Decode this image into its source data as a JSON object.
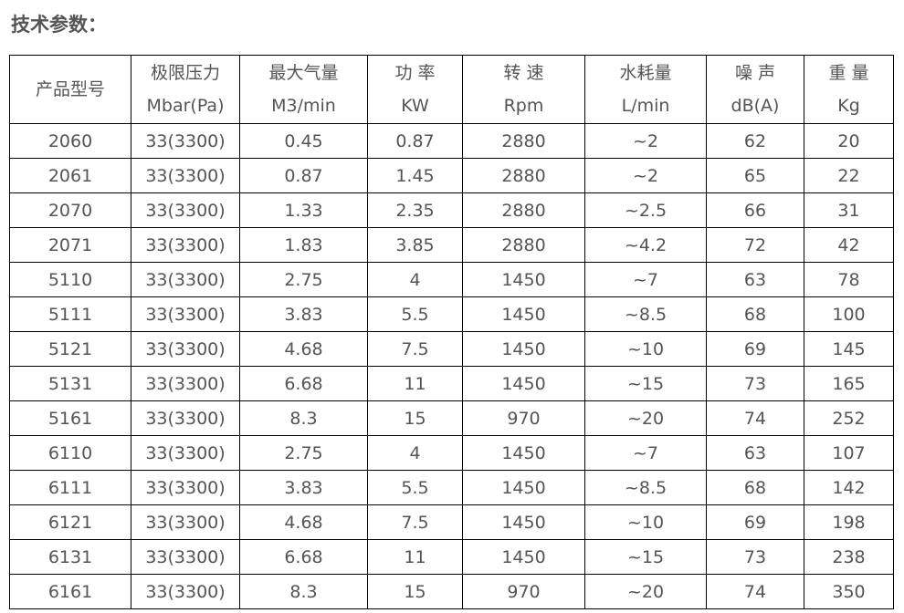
{
  "title": "技术参数：",
  "table": {
    "headers": [
      {
        "line1": "产品型号",
        "line2": ""
      },
      {
        "line1": "极限压力",
        "line2": "Mbar(Pa)"
      },
      {
        "line1": "最大气量",
        "line2": "M3/min"
      },
      {
        "line1": "功 率",
        "line2": "KW"
      },
      {
        "line1": "转 速",
        "line2": "Rpm"
      },
      {
        "line1": "水耗量",
        "line2": "L/min"
      },
      {
        "line1": "噪 声",
        "line2": "dB(A)"
      },
      {
        "line1": "重 量",
        "line2": "Kg"
      }
    ],
    "rows": [
      [
        "2060",
        "33(3300)",
        "0.45",
        "0.87",
        "2880",
        "~2",
        "62",
        "20"
      ],
      [
        "2061",
        "33(3300)",
        "0.87",
        "1.45",
        "2880",
        "~2",
        "65",
        "22"
      ],
      [
        "2070",
        "33(3300)",
        "1.33",
        "2.35",
        "2880",
        "~2.5",
        "66",
        "31"
      ],
      [
        "2071",
        "33(3300)",
        "1.83",
        "3.85",
        "2880",
        "~4.2",
        "72",
        "42"
      ],
      [
        "5110",
        "33(3300)",
        "2.75",
        "4",
        "1450",
        "~7",
        "63",
        "78"
      ],
      [
        "5111",
        "33(3300)",
        "3.83",
        "5.5",
        "1450",
        "~8.5",
        "68",
        "100"
      ],
      [
        "5121",
        "33(3300)",
        "4.68",
        "7.5",
        "1450",
        "~10",
        "69",
        "145"
      ],
      [
        "5131",
        "33(3300)",
        "6.68",
        "11",
        "1450",
        "~15",
        "73",
        "165"
      ],
      [
        "5161",
        "33(3300)",
        "8.3",
        "15",
        "970",
        "~20",
        "74",
        "252"
      ],
      [
        "6110",
        "33(3300)",
        "2.75",
        "4",
        "1450",
        "~7",
        "63",
        "107"
      ],
      [
        "6111",
        "33(3300)",
        "3.83",
        "5.5",
        "1450",
        "~8.5",
        "68",
        "142"
      ],
      [
        "6121",
        "33(3300)",
        "4.68",
        "7.5",
        "1450",
        "~10",
        "69",
        "198"
      ],
      [
        "6131",
        "33(3300)",
        "6.68",
        "11",
        "1450",
        "~15",
        "73",
        "238"
      ],
      [
        "6161",
        "33(3300)",
        "8.3",
        "15",
        "970",
        "~20",
        "74",
        "350"
      ]
    ]
  }
}
